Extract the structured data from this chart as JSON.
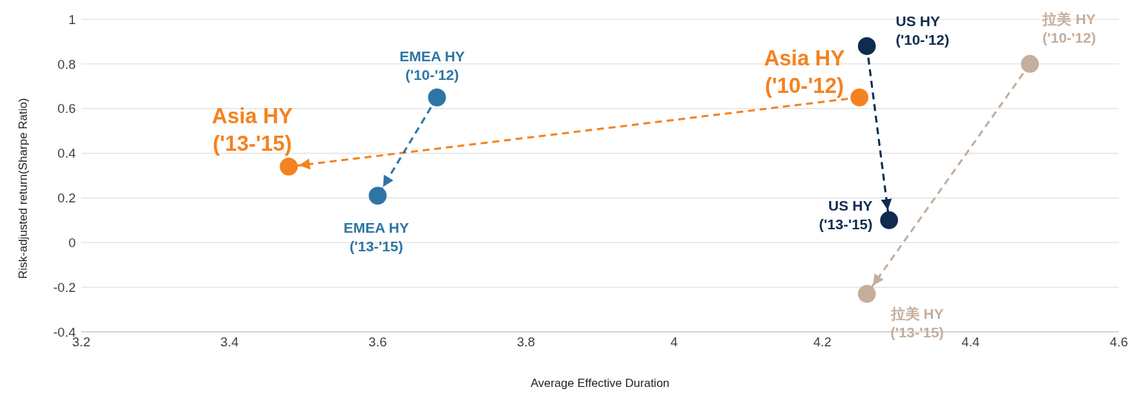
{
  "chart_data": {
    "type": "line",
    "xlabel": "Average Effective Duration",
    "ylabel": "Risk-adjusted return(Sharpe Ratio)",
    "xlim": [
      3.2,
      4.6
    ],
    "xticks": [
      3.2,
      3.4,
      3.6,
      3.8,
      4,
      4.2,
      4.4,
      4.6
    ],
    "ylim": [
      -0.4,
      1
    ],
    "yticks": [
      -0.4,
      -0.2,
      0,
      0.2,
      0.4,
      0.6,
      0.8,
      1
    ],
    "grid": "y",
    "marker": "circle",
    "line_style": "dashed",
    "series": [
      {
        "color": "#f58220",
        "x": [
          4.25,
          3.48
        ],
        "values": [
          0.65,
          0.34
        ]
      },
      {
        "color": "#2e75a6",
        "x": [
          3.68,
          3.6
        ],
        "values": [
          0.65,
          0.21
        ]
      },
      {
        "color": "#0f2b4f",
        "x": [
          4.26,
          4.29
        ],
        "values": [
          0.88,
          0.1
        ]
      },
      {
        "color": "#c4ae9c",
        "x": [
          4.48,
          4.26
        ],
        "values": [
          0.8,
          -0.23
        ]
      }
    ],
    "annotations": [
      {
        "text": "Asia HY ('10-'12)",
        "x": 4.25,
        "y": 0.65
      },
      {
        "text": "Asia HY ('13-'15)",
        "x": 3.48,
        "y": 0.34
      },
      {
        "text": "EMEA HY ('10-'12)",
        "x": 3.68,
        "y": 0.65
      },
      {
        "text": "EMEA HY ('13-'15)",
        "x": 3.6,
        "y": 0.21
      },
      {
        "text": "US HY ('10-'12)",
        "x": 4.26,
        "y": 0.88
      },
      {
        "text": "US HY ('13-'15)",
        "x": 4.29,
        "y": 0.1
      },
      {
        "text": "拉美 HY ('10-'12)",
        "x": 4.48,
        "y": 0.8
      },
      {
        "text": "拉美 HY ('13-'15)",
        "x": 4.26,
        "y": -0.23
      }
    ]
  }
}
